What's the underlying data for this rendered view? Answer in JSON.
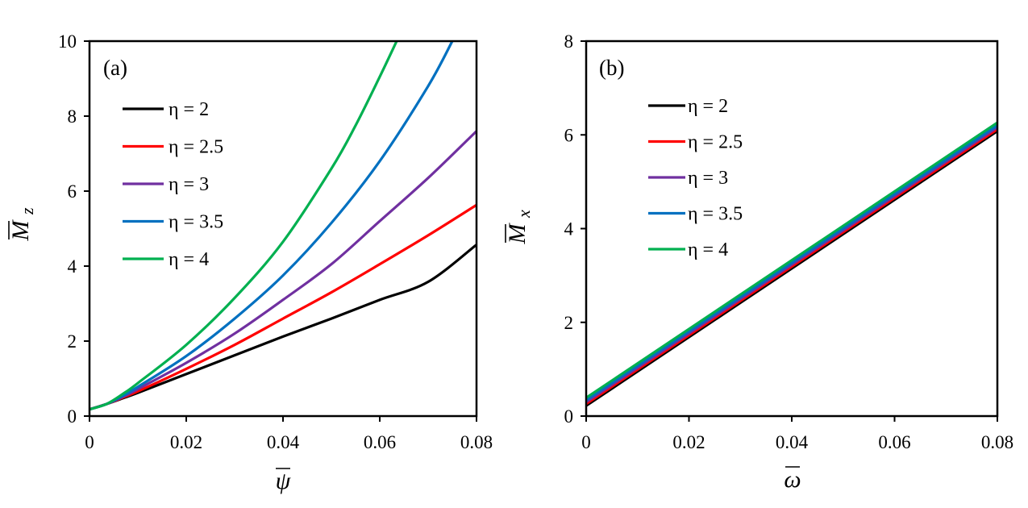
{
  "chart_data": [
    {
      "type": "line",
      "panel_label": "(a)",
      "xlabel": "ψ",
      "xlabel_overbar": true,
      "ylabel": "M",
      "ylabel_subscript": "z",
      "ylabel_overbar": true,
      "xlim": [
        0,
        0.08
      ],
      "ylim": [
        0,
        10
      ],
      "xticks": [
        0,
        0.02,
        0.04,
        0.06,
        0.08
      ],
      "xtick_labels": [
        "0",
        "0.02",
        "0.04",
        "0.06",
        "0.08"
      ],
      "yticks": [
        0,
        2,
        4,
        6,
        8,
        10
      ],
      "ytick_labels": [
        "0",
        "2",
        "4",
        "6",
        "8",
        "10"
      ],
      "legend_position": "upper-left",
      "series": [
        {
          "name": "η = 2",
          "color": "#000000",
          "x": [
            0,
            0.0035,
            0.007,
            0.01,
            0.02,
            0.03,
            0.04,
            0.05,
            0.06,
            0.07,
            0.08
          ],
          "y": [
            0.18,
            0.32,
            0.48,
            0.62,
            1.12,
            1.62,
            2.12,
            2.6,
            3.1,
            3.58,
            4.57
          ]
        },
        {
          "name": "η = 2.5",
          "color": "#ff0000",
          "x": [
            0,
            0.0035,
            0.007,
            0.01,
            0.02,
            0.03,
            0.04,
            0.05,
            0.06,
            0.07,
            0.08
          ],
          "y": [
            0.18,
            0.32,
            0.5,
            0.66,
            1.26,
            1.9,
            2.6,
            3.3,
            4.05,
            4.82,
            5.63
          ]
        },
        {
          "name": "η = 3",
          "color": "#7030a0",
          "x": [
            0,
            0.0035,
            0.007,
            0.01,
            0.02,
            0.03,
            0.04,
            0.05,
            0.06,
            0.07,
            0.08
          ],
          "y": [
            0.18,
            0.32,
            0.52,
            0.72,
            1.42,
            2.2,
            3.1,
            4.05,
            5.2,
            6.35,
            7.6
          ]
        },
        {
          "name": "η = 3.5",
          "color": "#0070c0",
          "x": [
            0,
            0.0035,
            0.007,
            0.01,
            0.02,
            0.03,
            0.04,
            0.05,
            0.06,
            0.07,
            0.075
          ],
          "y": [
            0.18,
            0.32,
            0.55,
            0.78,
            1.6,
            2.6,
            3.75,
            5.15,
            6.8,
            8.8,
            10.0
          ]
        },
        {
          "name": "η = 4",
          "color": "#00b050",
          "x": [
            0,
            0.0035,
            0.007,
            0.01,
            0.02,
            0.03,
            0.04,
            0.05,
            0.055,
            0.06,
            0.0635
          ],
          "y": [
            0.18,
            0.32,
            0.6,
            0.88,
            1.9,
            3.15,
            4.65,
            6.6,
            7.75,
            9.05,
            10.0
          ]
        }
      ]
    },
    {
      "type": "line",
      "panel_label": "(b)",
      "xlabel": "ω",
      "xlabel_overbar": true,
      "ylabel": "M",
      "ylabel_subscript": "x",
      "ylabel_overbar": true,
      "xlim": [
        0,
        0.08
      ],
      "ylim": [
        0,
        8
      ],
      "xticks": [
        0,
        0.02,
        0.04,
        0.06,
        0.08
      ],
      "xtick_labels": [
        "0",
        "0.02",
        "0.04",
        "0.06",
        "0.08"
      ],
      "yticks": [
        0,
        2,
        4,
        6,
        8
      ],
      "ytick_labels": [
        "0",
        "2",
        "4",
        "6",
        "8"
      ],
      "legend_position": "upper-left",
      "series": [
        {
          "name": "η = 2",
          "color": "#000000",
          "x": [
            0,
            0.08
          ],
          "y": [
            0.22,
            6.08
          ]
        },
        {
          "name": "η = 2.5",
          "color": "#ff0000",
          "x": [
            0,
            0.08
          ],
          "y": [
            0.26,
            6.12
          ]
        },
        {
          "name": "η = 3",
          "color": "#7030a0",
          "x": [
            0,
            0.08
          ],
          "y": [
            0.3,
            6.16
          ]
        },
        {
          "name": "η = 3.5",
          "color": "#0070c0",
          "x": [
            0,
            0.08
          ],
          "y": [
            0.34,
            6.2
          ]
        },
        {
          "name": "η = 4",
          "color": "#00b050",
          "x": [
            0,
            0.08
          ],
          "y": [
            0.39,
            6.26
          ]
        }
      ]
    }
  ]
}
